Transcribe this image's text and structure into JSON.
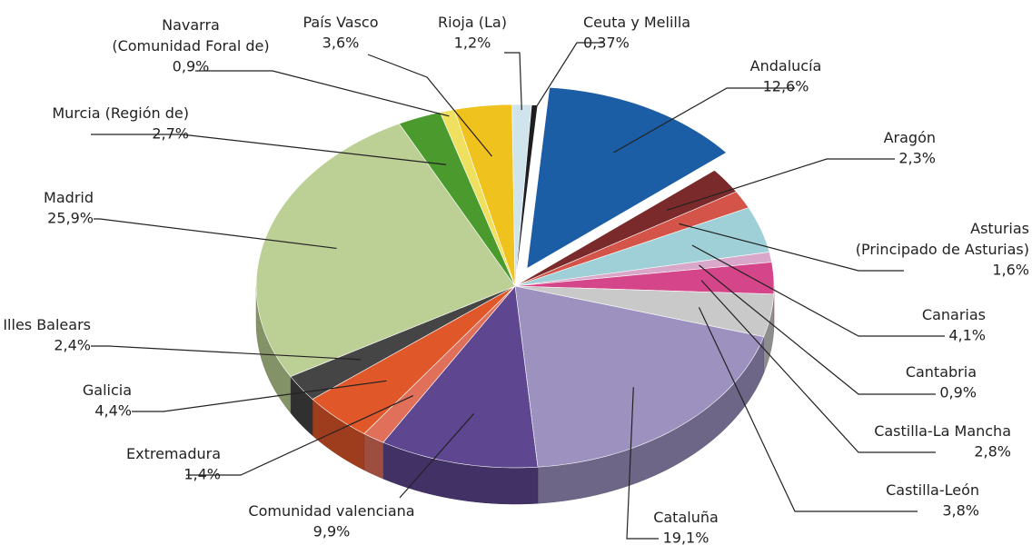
{
  "chart_data": {
    "type": "pie3d",
    "categories": [
      "Andalucía",
      "Aragón",
      "Asturias\n(Principado de Asturias)",
      "Canarias",
      "Cantabria",
      "Castilla-La Mancha",
      "Castilla-León",
      "Cataluña",
      "Comunidad valenciana",
      "Extremadura",
      "Galicia",
      "Illes Balears",
      "Madrid",
      "Murcia (Región de)",
      "Navarra\n(Comunidad Foral de)",
      "País Vasco",
      "Rioja (La)",
      "Ceuta y Melilla"
    ],
    "values": [
      12.6,
      2.3,
      1.6,
      4.1,
      0.9,
      2.8,
      3.8,
      19.1,
      9.9,
      1.4,
      4.4,
      2.4,
      25.9,
      2.7,
      0.9,
      3.6,
      1.2,
      0.37
    ],
    "value_labels": [
      "12,6%",
      "2,3%",
      "1,6%",
      "4,1%",
      "0,9%",
      "2,8%",
      "3,8%",
      "19,1%",
      "9,9%",
      "1,4%",
      "4,4%",
      "2,4%",
      "25,9%",
      "2,7%",
      "0,9%",
      "3,6%",
      "1,2%",
      "0,37%"
    ],
    "colors": [
      "#1b5ea6",
      "#7a2a2a",
      "#d4544a",
      "#9fd0d8",
      "#d9a7c9",
      "#d4458a",
      "#c9c9c9",
      "#9d91c0",
      "#5e4690",
      "#e0705a",
      "#e0572a",
      "#454545",
      "#bcd095",
      "#4a9a2e",
      "#f0e060",
      "#f0c21e",
      "#d0e4ec",
      "#1e1e1e"
    ],
    "exploded": [
      0
    ]
  }
}
